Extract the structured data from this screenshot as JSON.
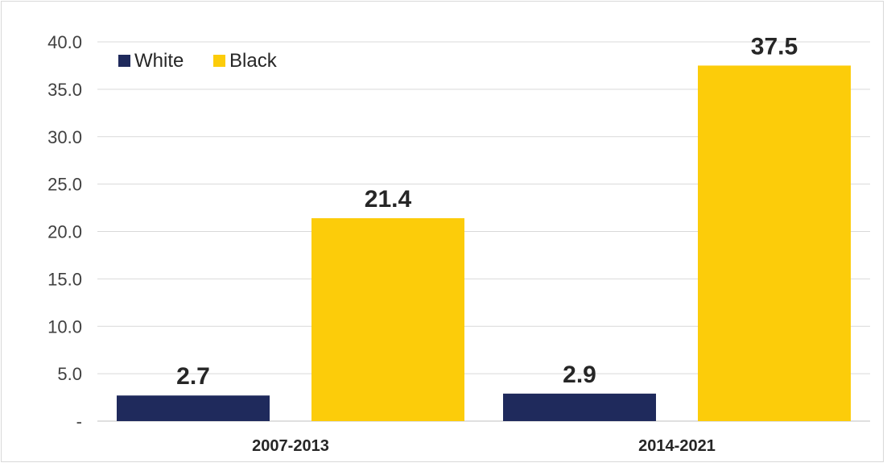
{
  "chart_data": {
    "type": "bar",
    "categories": [
      "2007-2013",
      "2014-2021"
    ],
    "series": [
      {
        "name": "White",
        "values": [
          2.7,
          2.9
        ],
        "color": "#1f2a5c"
      },
      {
        "name": "Black",
        "values": [
          21.4,
          37.5
        ],
        "color": "#fccc0a"
      }
    ],
    "yticks": [
      "-",
      "5.0",
      "10.0",
      "15.0",
      "20.0",
      "25.0",
      "30.0",
      "35.0",
      "40.0"
    ],
    "ylim": [
      0,
      40
    ],
    "grid": true,
    "legend_position": "top-left",
    "data_labels": true
  }
}
